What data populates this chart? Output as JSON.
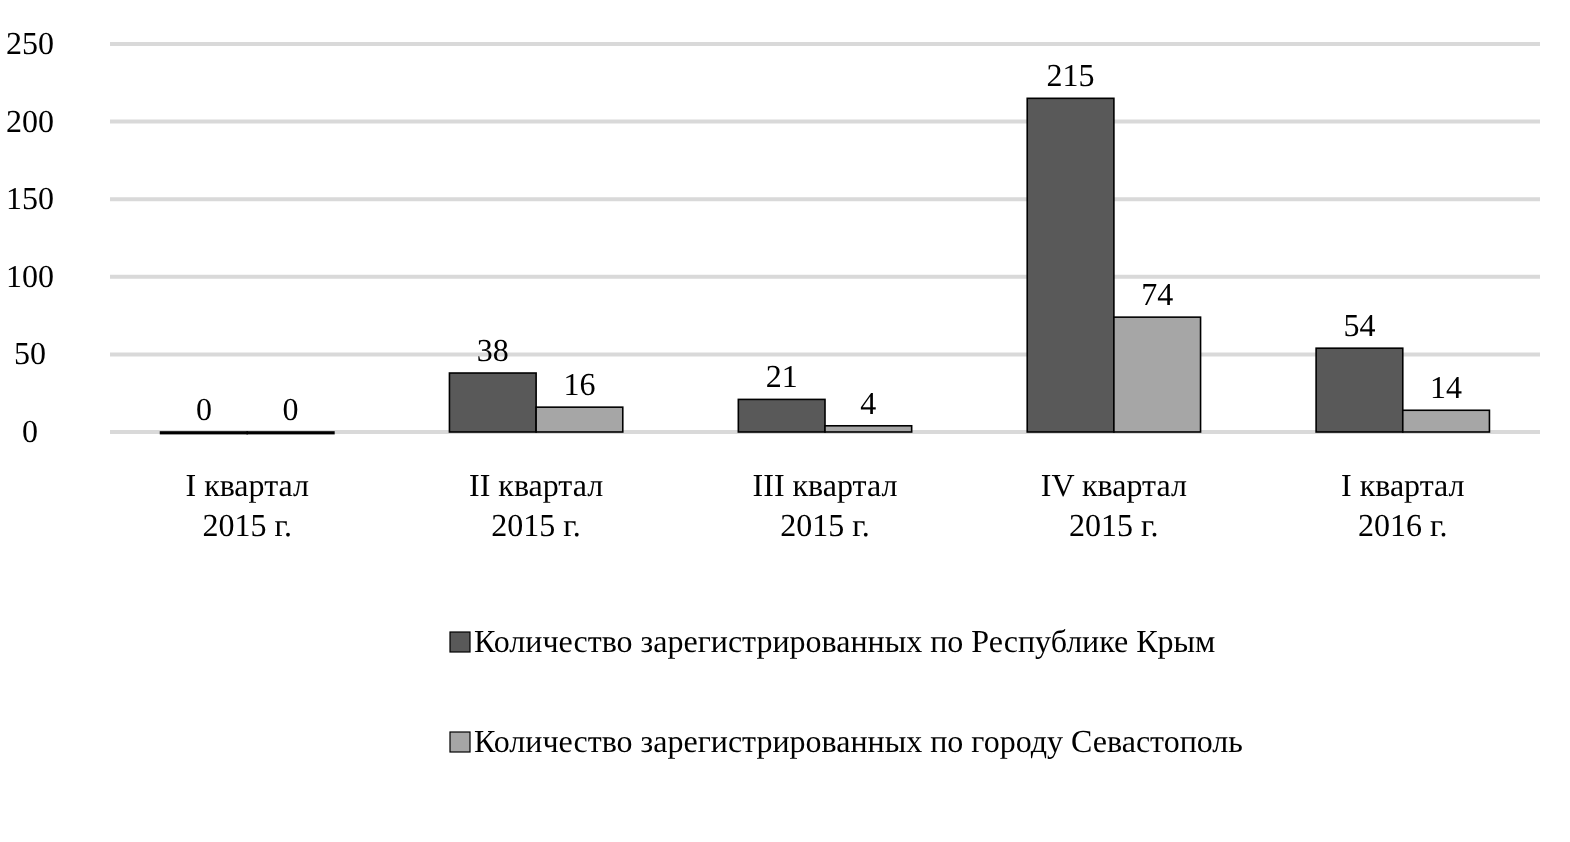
{
  "chart_data": {
    "type": "bar",
    "categories": [
      "I квартал\n2015 г.",
      "II квартал\n2015 г.",
      "III квартал\n2015 г.",
      "IV квартал\n2015 г.",
      "I квартал\n2016 г."
    ],
    "series": [
      {
        "name": "Количество зарегистрированных по Республике Крым",
        "color": "#595959",
        "values": [
          0,
          38,
          21,
          215,
          54
        ]
      },
      {
        "name": "Количество зарегистрированных по городу Севастополь",
        "color": "#a6a6a6",
        "values": [
          0,
          16,
          4,
          74,
          14
        ]
      }
    ],
    "ylim": [
      0,
      250
    ],
    "yticks": [
      0,
      50,
      100,
      150,
      200,
      250
    ],
    "grid": "y",
    "legend": "bottom",
    "data_labels": true
  }
}
